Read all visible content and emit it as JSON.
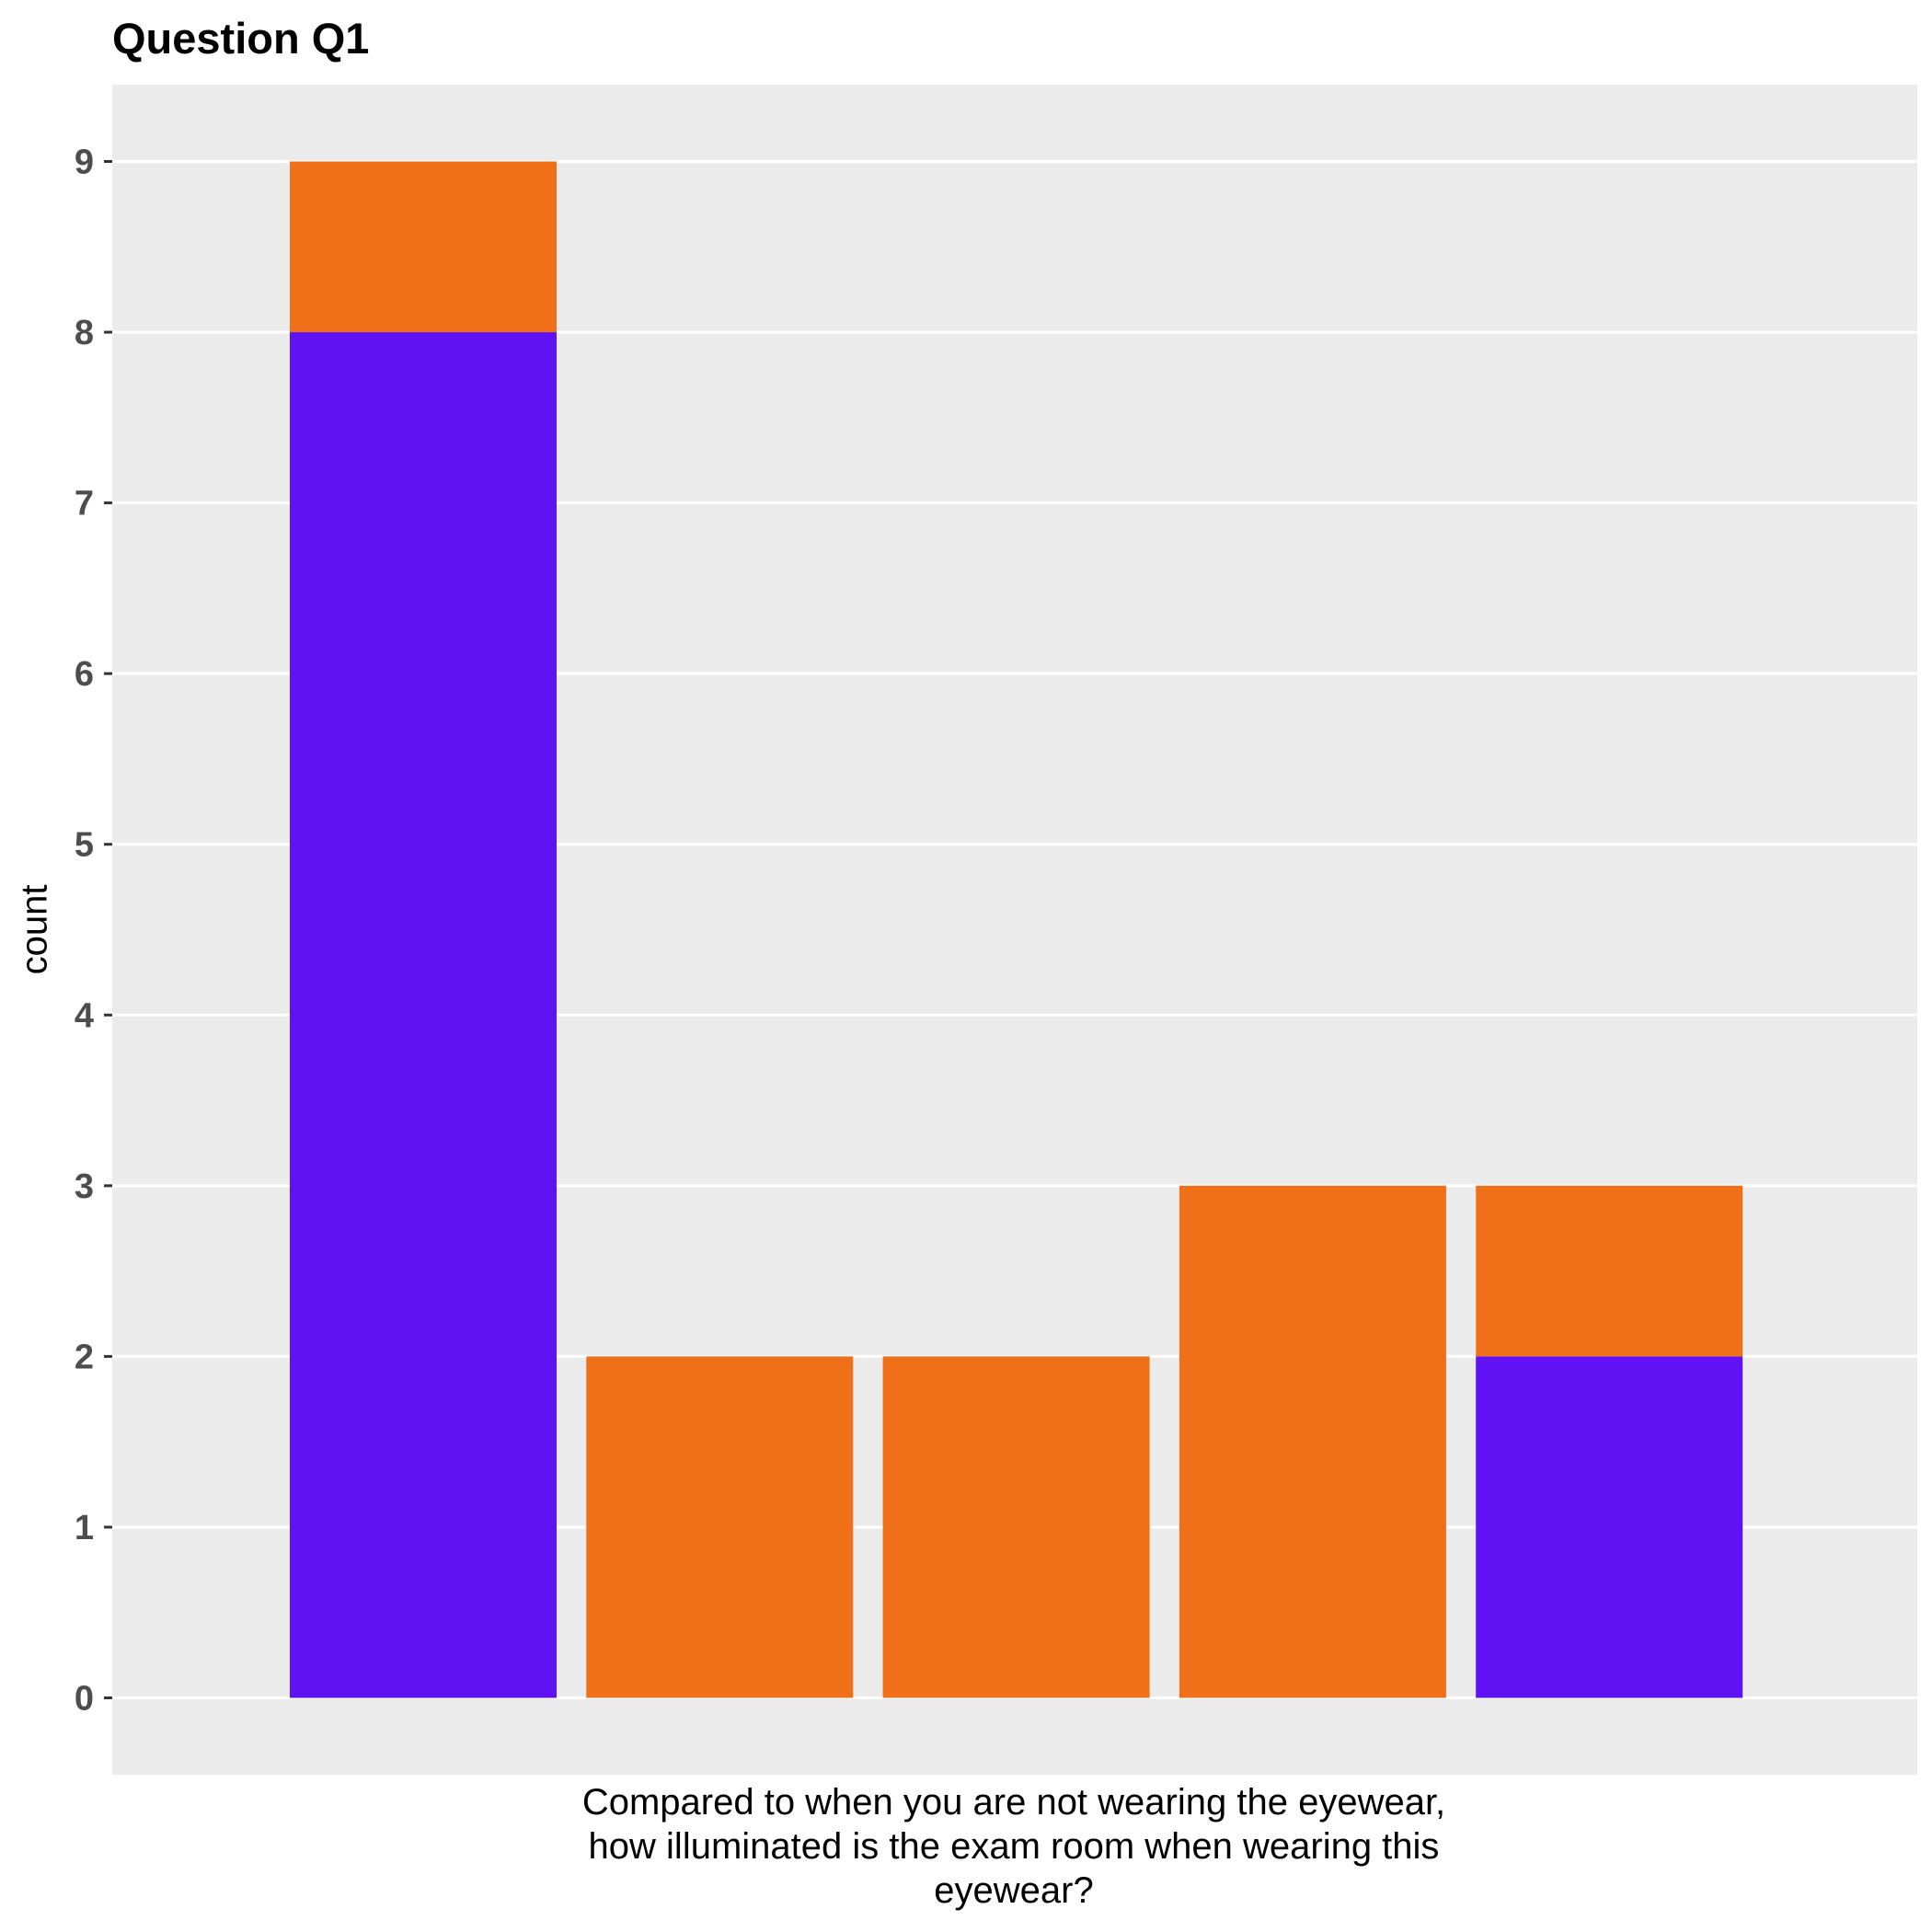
{
  "chart_data": {
    "type": "bar",
    "stacked": true,
    "title": "Question Q1",
    "xlabel": "Compared to when you are not wearing the eyewear,\nhow illuminated is the exam room when wearing this\neyewear?",
    "ylabel": "count",
    "categories": [
      "",
      "",
      "",
      "",
      ""
    ],
    "series": [
      {
        "values": [
          8,
          0,
          0,
          0,
          2
        ],
        "color": "#5f13f5"
      },
      {
        "values": [
          1,
          2,
          2,
          3,
          1
        ],
        "color": "#f06f19"
      }
    ],
    "ylim": [
      -0.45,
      9.45
    ],
    "yticks": [
      0,
      1,
      2,
      3,
      4,
      5,
      6,
      7,
      8,
      9
    ],
    "grid": true,
    "legend": "none",
    "panel_color": "#ebebeb",
    "grid_color": "#ffffff"
  }
}
